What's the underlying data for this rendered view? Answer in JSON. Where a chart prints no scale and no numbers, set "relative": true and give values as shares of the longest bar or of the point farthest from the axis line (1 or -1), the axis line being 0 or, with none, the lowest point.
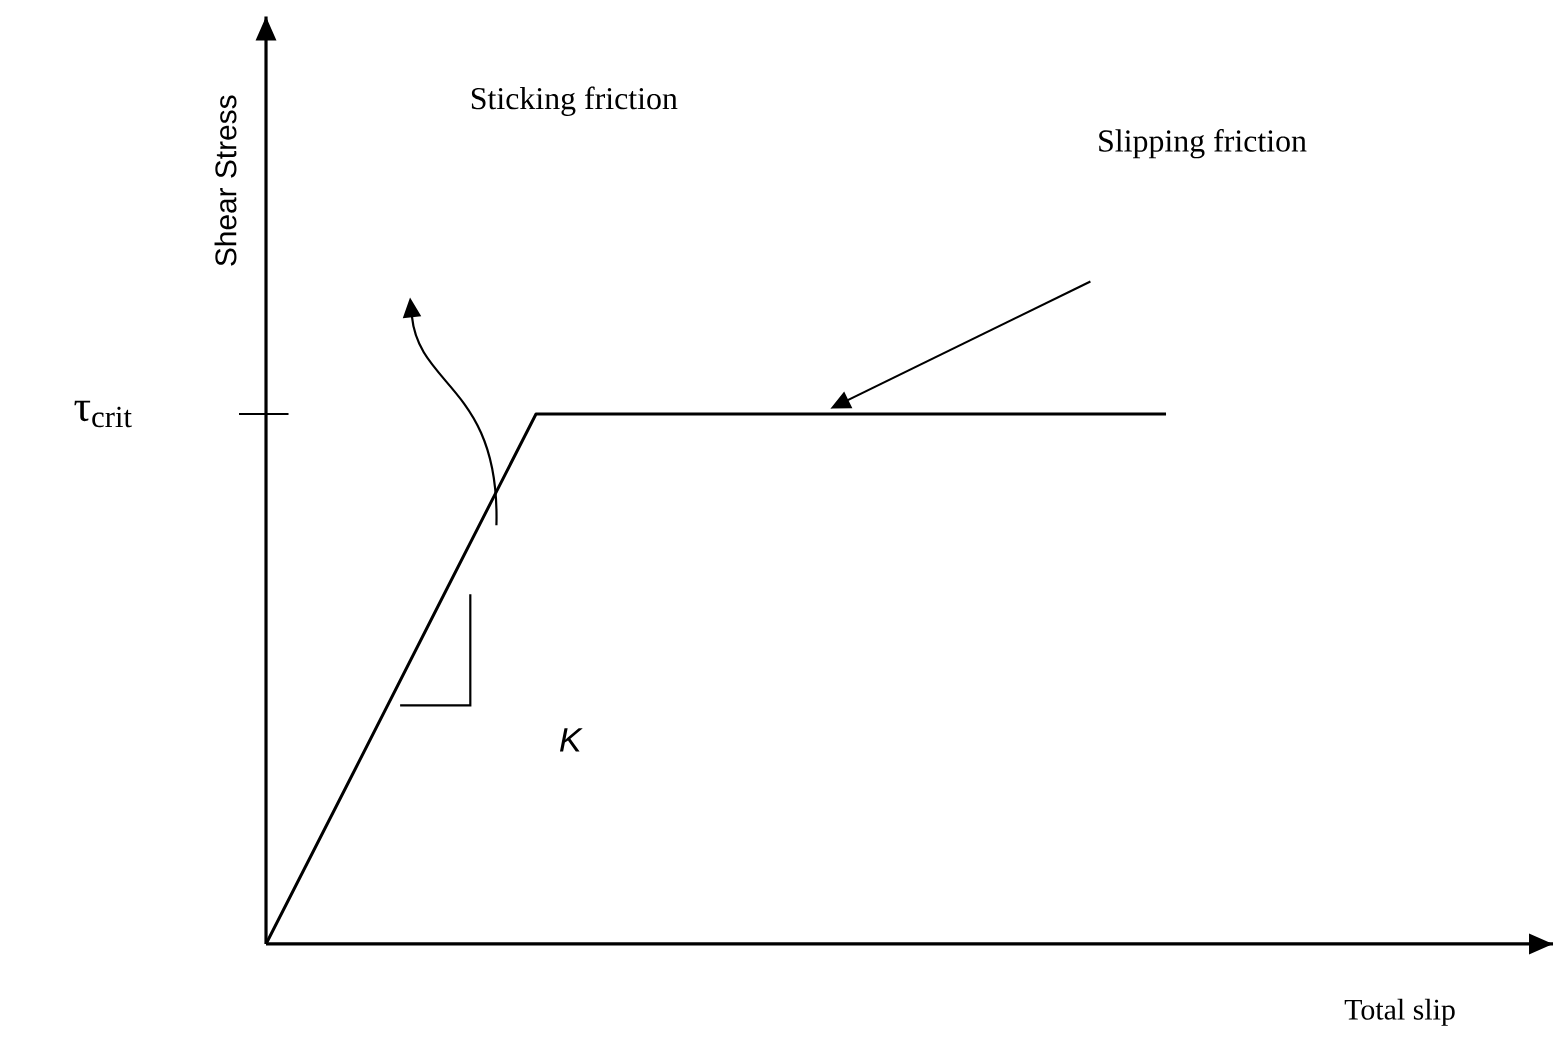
{
  "chart_data": {
    "type": "line",
    "relative": true,
    "xlabel": "Total slip",
    "ylabel": "Shear Stress",
    "color": "#000000",
    "categories": [
      null,
      null,
      null,
      null,
      null,
      null,
      null,
      null,
      null,
      null,
      null
    ],
    "values": [
      0,
      0.333,
      0.667,
      1,
      1,
      1,
      1,
      1,
      1,
      1,
      1
    ],
    "annotations": [
      "τ$_{crit}$",
      "Sticking friction",
      "Slipping friction",
      "K"
    ]
  }
}
